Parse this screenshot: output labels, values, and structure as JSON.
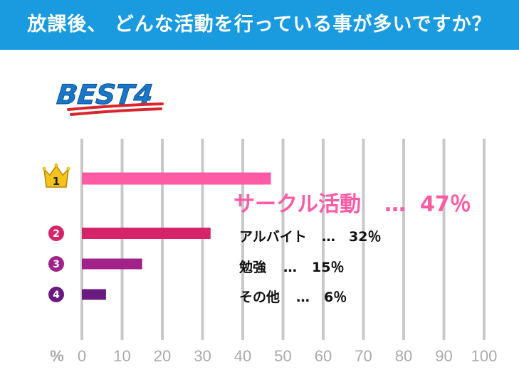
{
  "title": "放課後、 どんな活動を行っている事が多いですか？",
  "badge": "BEST4",
  "colors": {
    "header": "#1a9be0",
    "grid": "#c8c8c8",
    "badge_text": "#1877c9",
    "badge_underline": "#d8262e",
    "rank1": "#ff5ba4",
    "rank2": "#d6246a",
    "rank3": "#a1238a",
    "rank4": "#6a1b80",
    "crown": "#f7c21a"
  },
  "chart_data": {
    "type": "bar",
    "orientation": "horizontal",
    "title": "放課後、 どんな活動を行っている事が多いですか？",
    "xlabel": "%",
    "xlim": [
      0,
      100
    ],
    "xticks": [
      "0",
      "10",
      "20",
      "30",
      "40",
      "50",
      "60",
      "70",
      "80",
      "90",
      "100"
    ],
    "grid": true,
    "bars": [
      {
        "rank": "1",
        "label": "サークル活動",
        "value": 47,
        "value_text": "47％",
        "separator": "…"
      },
      {
        "rank": "2",
        "label": "アルバイト",
        "value": 32,
        "value_text": "32％",
        "separator": "…"
      },
      {
        "rank": "3",
        "label": "勉強",
        "value": 15,
        "value_text": "15％",
        "separator": "…"
      },
      {
        "rank": "4",
        "label": "その他",
        "value": 6,
        "value_text": "6％",
        "separator": "…"
      }
    ]
  }
}
